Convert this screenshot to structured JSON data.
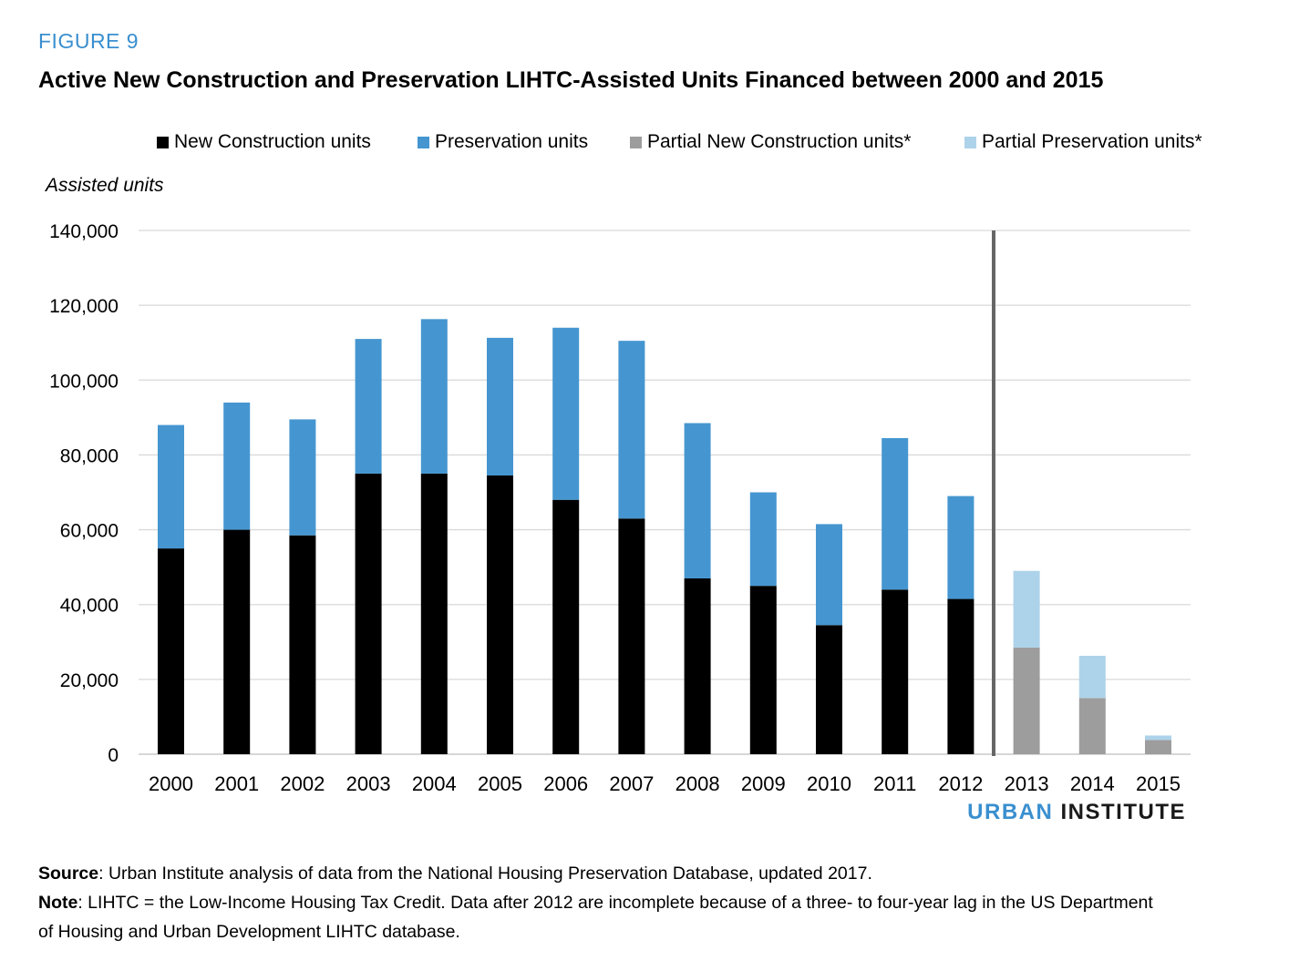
{
  "figure_label": "FIGURE 9",
  "title": "Active New Construction and Preservation LIHTC-Assisted Units Financed between 2000 and 2015",
  "brand": {
    "part1": "URBAN",
    "part2": "INSTITUTE"
  },
  "source": {
    "label": "Source",
    "text": ": Urban Institute analysis of data from the National Housing Preservation Database, updated 2017."
  },
  "note": {
    "label": "Note",
    "text": ": LIHTC = the Low-Income Housing Tax Credit. Data after 2012 are incomplete because of a three- to four-year lag in the US Department of Housing and Urban Development LIHTC database."
  },
  "colors": {
    "new_construction": "#000000",
    "preservation": "#4596d0",
    "partial_new_construction": "#9d9d9d",
    "partial_preservation": "#add3ea",
    "divider": "#666666",
    "gridline": "#d9d9d9"
  },
  "chart_data": {
    "type": "bar",
    "stacked": true,
    "title": "Active New Construction and Preservation LIHTC-Assisted Units Financed between 2000 and 2015",
    "xlabel": "",
    "ylabel": "Assisted units",
    "ylim": [
      0,
      140000
    ],
    "yticks": [
      0,
      20000,
      40000,
      60000,
      80000,
      100000,
      120000,
      140000
    ],
    "ytick_labels": [
      "0",
      "20,000",
      "40,000",
      "60,000",
      "80,000",
      "100,000",
      "120,000",
      "140,000"
    ],
    "grid": true,
    "legend_position": "top",
    "categories": [
      "2000",
      "2001",
      "2002",
      "2003",
      "2004",
      "2005",
      "2006",
      "2007",
      "2008",
      "2009",
      "2010",
      "2011",
      "2012",
      "2013",
      "2014",
      "2015"
    ],
    "divider_after": "2012",
    "series": [
      {
        "name": "New Construction units",
        "color_key": "new_construction",
        "values": [
          55000,
          60000,
          58500,
          75000,
          75000,
          74500,
          68000,
          63000,
          47000,
          45000,
          34500,
          44000,
          41500,
          0,
          0,
          0
        ]
      },
      {
        "name": "Preservation units",
        "color_key": "preservation",
        "values": [
          33000,
          34000,
          31000,
          36000,
          41300,
          36800,
          46000,
          47500,
          41500,
          25000,
          27000,
          40500,
          27500,
          0,
          0,
          0
        ]
      },
      {
        "name": "Partial New Construction units*",
        "color_key": "partial_new_construction",
        "values": [
          0,
          0,
          0,
          0,
          0,
          0,
          0,
          0,
          0,
          0,
          0,
          0,
          0,
          28500,
          15000,
          3800
        ]
      },
      {
        "name": "Partial Preservation units*",
        "color_key": "partial_preservation",
        "values": [
          0,
          0,
          0,
          0,
          0,
          0,
          0,
          0,
          0,
          0,
          0,
          0,
          0,
          20500,
          11300,
          1200
        ]
      }
    ]
  }
}
